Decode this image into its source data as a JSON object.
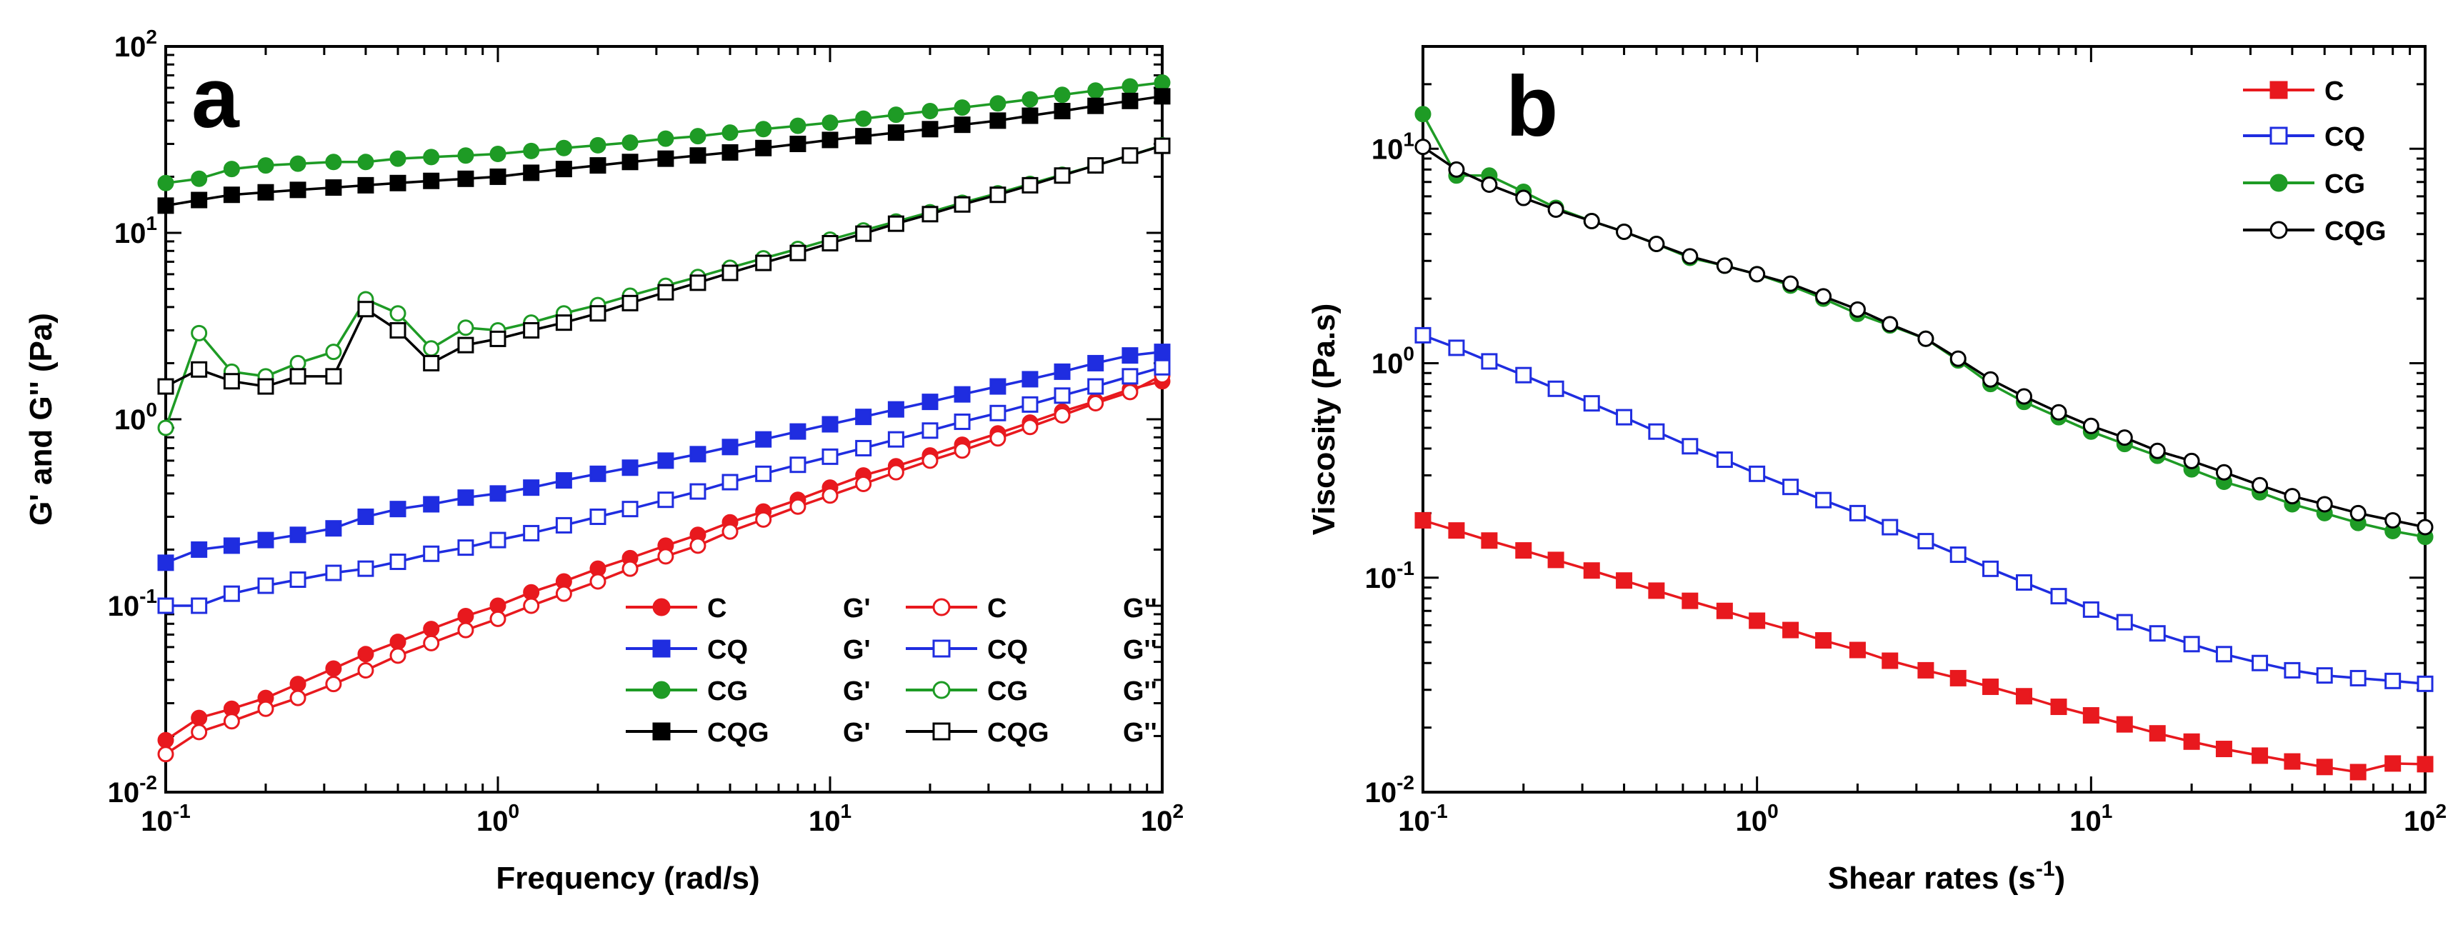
{
  "chart_data": [
    {
      "panel": "a",
      "type": "line",
      "xscale": "log",
      "yscale": "log",
      "xlim": [
        0.1,
        100
      ],
      "ylim": [
        0.01,
        100
      ],
      "xlabel": "Frequency (rad/s)",
      "ylabel": "G' and G'' (Pa)",
      "xticks": [
        {
          "v": 0.1,
          "base": "10",
          "exp": "-1"
        },
        {
          "v": 1,
          "base": "10",
          "exp": "0"
        },
        {
          "v": 10,
          "base": "10",
          "exp": "1"
        },
        {
          "v": 100,
          "base": "10",
          "exp": "2"
        }
      ],
      "yticks": [
        {
          "v": 0.01,
          "base": "10",
          "exp": "-2"
        },
        {
          "v": 0.1,
          "base": "10",
          "exp": "-1"
        },
        {
          "v": 1,
          "base": "10",
          "exp": "0"
        },
        {
          "v": 10,
          "base": "10",
          "exp": "1"
        },
        {
          "v": 100,
          "base": "10",
          "exp": "2"
        }
      ],
      "legend_position": "bottom-right",
      "series": [
        {
          "name": "C",
          "label": "G'",
          "color": "#e8191e",
          "marker": "circle",
          "filled": true,
          "x": [
            0.1,
            0.126,
            0.158,
            0.2,
            0.25,
            0.32,
            0.4,
            0.5,
            0.63,
            0.8,
            1,
            1.26,
            1.58,
            2,
            2.5,
            3.2,
            4,
            5,
            6.3,
            8,
            10,
            12.6,
            15.8,
            20,
            25,
            32,
            40,
            50,
            63,
            80,
            100
          ],
          "y": [
            0.019,
            0.025,
            0.028,
            0.032,
            0.038,
            0.046,
            0.055,
            0.064,
            0.075,
            0.088,
            0.1,
            0.118,
            0.135,
            0.158,
            0.18,
            0.21,
            0.24,
            0.28,
            0.32,
            0.37,
            0.43,
            0.5,
            0.56,
            0.64,
            0.73,
            0.84,
            0.96,
            1.1,
            1.25,
            1.45,
            1.6
          ]
        },
        {
          "name": "C",
          "label": "G''",
          "color": "#e8191e",
          "marker": "circle",
          "filled": false,
          "x": [
            0.1,
            0.126,
            0.158,
            0.2,
            0.25,
            0.32,
            0.4,
            0.5,
            0.63,
            0.8,
            1,
            1.26,
            1.58,
            2,
            2.5,
            3.2,
            4,
            5,
            6.3,
            8,
            10,
            12.6,
            15.8,
            20,
            25,
            32,
            40,
            50,
            63,
            80,
            100
          ],
          "y": [
            0.016,
            0.021,
            0.024,
            0.028,
            0.032,
            0.038,
            0.045,
            0.054,
            0.063,
            0.074,
            0.085,
            0.1,
            0.116,
            0.135,
            0.158,
            0.184,
            0.21,
            0.25,
            0.29,
            0.34,
            0.39,
            0.45,
            0.52,
            0.6,
            0.68,
            0.79,
            0.91,
            1.05,
            1.22,
            1.4,
            1.72
          ]
        },
        {
          "name": "CQ",
          "label": "G'",
          "color": "#1f2de0",
          "marker": "square",
          "filled": true,
          "x": [
            0.1,
            0.126,
            0.158,
            0.2,
            0.25,
            0.32,
            0.4,
            0.5,
            0.63,
            0.8,
            1,
            1.26,
            1.58,
            2,
            2.5,
            3.2,
            4,
            5,
            6.3,
            8,
            10,
            12.6,
            15.8,
            20,
            25,
            32,
            40,
            50,
            63,
            80,
            100
          ],
          "y": [
            0.17,
            0.2,
            0.21,
            0.225,
            0.24,
            0.26,
            0.3,
            0.33,
            0.35,
            0.38,
            0.4,
            0.43,
            0.47,
            0.51,
            0.55,
            0.6,
            0.65,
            0.71,
            0.78,
            0.86,
            0.94,
            1.03,
            1.13,
            1.24,
            1.36,
            1.5,
            1.64,
            1.8,
            2.0,
            2.2,
            2.3
          ]
        },
        {
          "name": "CQ",
          "label": "G''",
          "color": "#1f2de0",
          "marker": "square",
          "filled": false,
          "x": [
            0.1,
            0.126,
            0.158,
            0.2,
            0.25,
            0.32,
            0.4,
            0.5,
            0.63,
            0.8,
            1,
            1.26,
            1.58,
            2,
            2.5,
            3.2,
            4,
            5,
            6.3,
            8,
            10,
            12.6,
            15.8,
            20,
            25,
            32,
            40,
            50,
            63,
            80,
            100
          ],
          "y": [
            0.1,
            0.1,
            0.116,
            0.128,
            0.138,
            0.15,
            0.158,
            0.172,
            0.19,
            0.205,
            0.225,
            0.245,
            0.27,
            0.3,
            0.33,
            0.37,
            0.41,
            0.46,
            0.51,
            0.57,
            0.63,
            0.7,
            0.78,
            0.87,
            0.97,
            1.08,
            1.2,
            1.34,
            1.5,
            1.7,
            1.9
          ]
        },
        {
          "name": "CG",
          "label": "G'",
          "color": "#1e9b25",
          "marker": "circle",
          "filled": true,
          "x": [
            0.1,
            0.126,
            0.158,
            0.2,
            0.25,
            0.32,
            0.4,
            0.5,
            0.63,
            0.8,
            1,
            1.26,
            1.58,
            2,
            2.5,
            3.2,
            4,
            5,
            6.3,
            8,
            10,
            12.6,
            15.8,
            20,
            25,
            32,
            40,
            50,
            63,
            80,
            100
          ],
          "y": [
            18.5,
            19.5,
            22,
            23,
            23.5,
            24,
            24,
            25,
            25.5,
            26,
            26.5,
            27.5,
            28.5,
            29.5,
            30.5,
            32,
            33,
            34.5,
            36,
            37.5,
            39,
            41,
            43,
            45,
            47,
            49.5,
            52,
            55,
            58,
            61,
            64
          ]
        },
        {
          "name": "CG",
          "label": "G''",
          "color": "#1e9b25",
          "marker": "circle",
          "filled": false,
          "x": [
            0.1,
            0.126,
            0.158,
            0.2,
            0.25,
            0.32,
            0.4,
            0.5,
            0.63,
            0.8,
            1,
            1.26,
            1.58,
            2,
            2.5,
            3.2,
            4,
            5,
            6.3,
            8,
            10,
            12.6,
            15.8,
            20,
            25,
            32,
            40,
            50,
            63,
            80,
            100
          ],
          "y": [
            0.9,
            2.9,
            1.8,
            1.7,
            2.0,
            2.3,
            4.4,
            3.7,
            2.4,
            3.1,
            3.0,
            3.3,
            3.7,
            4.1,
            4.6,
            5.2,
            5.8,
            6.5,
            7.3,
            8.2,
            9.2,
            10.3,
            11.5,
            12.9,
            14.5,
            16.3,
            18.3,
            20.5,
            23,
            26,
            29.5
          ]
        },
        {
          "name": "CQG",
          "label": "G'",
          "color": "#000000",
          "marker": "square",
          "filled": true,
          "x": [
            0.1,
            0.126,
            0.158,
            0.2,
            0.25,
            0.32,
            0.4,
            0.5,
            0.63,
            0.8,
            1,
            1.26,
            1.58,
            2,
            2.5,
            3.2,
            4,
            5,
            6.3,
            8,
            10,
            12.6,
            15.8,
            20,
            25,
            32,
            40,
            50,
            63,
            80,
            100
          ],
          "y": [
            14,
            15,
            16,
            16.5,
            17,
            17.5,
            18,
            18.5,
            19,
            19.5,
            20,
            21,
            22,
            23,
            24,
            25,
            26,
            27,
            28.5,
            30,
            31.5,
            33,
            34.5,
            36,
            38,
            40,
            42.5,
            45,
            48,
            51,
            54
          ]
        },
        {
          "name": "CQG",
          "label": "G''",
          "color": "#000000",
          "marker": "square",
          "filled": false,
          "x": [
            0.1,
            0.126,
            0.158,
            0.2,
            0.25,
            0.32,
            0.4,
            0.5,
            0.63,
            0.8,
            1,
            1.26,
            1.58,
            2,
            2.5,
            3.2,
            4,
            5,
            6.3,
            8,
            10,
            12.6,
            15.8,
            20,
            25,
            32,
            40,
            50,
            63,
            80,
            100
          ],
          "y": [
            1.5,
            1.85,
            1.6,
            1.5,
            1.7,
            1.7,
            3.9,
            3.0,
            2.0,
            2.5,
            2.7,
            3.0,
            3.3,
            3.7,
            4.2,
            4.8,
            5.4,
            6.1,
            6.9,
            7.8,
            8.8,
            9.9,
            11.2,
            12.6,
            14.2,
            16,
            18,
            20.3,
            23,
            26,
            29.3
          ]
        }
      ]
    },
    {
      "panel": "b",
      "type": "line",
      "xscale": "log",
      "yscale": "log",
      "xlim": [
        0.1,
        100
      ],
      "ylim": [
        0.01,
        30
      ],
      "xlabel": "Shear rates (s",
      "xlabel_sup": "-1",
      "xlabel_end": ")",
      "ylabel": "Viscosity (Pa.s)",
      "xticks": [
        {
          "v": 0.1,
          "base": "10",
          "exp": "-1"
        },
        {
          "v": 1,
          "base": "10",
          "exp": "0"
        },
        {
          "v": 10,
          "base": "10",
          "exp": "1"
        },
        {
          "v": 100,
          "base": "10",
          "exp": "2"
        }
      ],
      "yticks": [
        {
          "v": 0.01,
          "base": "10",
          "exp": "-2"
        },
        {
          "v": 0.1,
          "base": "10",
          "exp": "-1"
        },
        {
          "v": 1,
          "base": "10",
          "exp": "0"
        },
        {
          "v": 10,
          "base": "10",
          "exp": "1"
        }
      ],
      "legend_position": "top-right",
      "series": [
        {
          "name": "C",
          "color": "#e8191e",
          "marker": "square",
          "filled": true,
          "x": [
            0.1,
            0.126,
            0.158,
            0.2,
            0.25,
            0.32,
            0.4,
            0.5,
            0.63,
            0.8,
            1,
            1.26,
            1.58,
            2,
            2.5,
            3.2,
            4,
            5,
            6.3,
            8,
            10,
            12.6,
            15.8,
            20,
            25,
            32,
            40,
            50,
            63,
            80,
            100
          ],
          "y": [
            0.185,
            0.166,
            0.149,
            0.134,
            0.121,
            0.108,
            0.097,
            0.087,
            0.078,
            0.07,
            0.063,
            0.057,
            0.051,
            0.046,
            0.041,
            0.037,
            0.034,
            0.031,
            0.028,
            0.025,
            0.0228,
            0.0207,
            0.0188,
            0.0172,
            0.0159,
            0.0148,
            0.0139,
            0.0131,
            0.0124,
            0.0136,
            0.0135
          ]
        },
        {
          "name": "CQ",
          "color": "#1f2de0",
          "marker": "square",
          "filled": false,
          "x": [
            0.1,
            0.126,
            0.158,
            0.2,
            0.25,
            0.32,
            0.4,
            0.5,
            0.63,
            0.8,
            1,
            1.26,
            1.58,
            2,
            2.5,
            3.2,
            4,
            5,
            6.3,
            8,
            10,
            12.6,
            15.8,
            20,
            25,
            32,
            40,
            50,
            63,
            80,
            100
          ],
          "y": [
            1.35,
            1.18,
            1.02,
            0.88,
            0.76,
            0.65,
            0.56,
            0.48,
            0.41,
            0.355,
            0.305,
            0.265,
            0.23,
            0.2,
            0.172,
            0.148,
            0.128,
            0.11,
            0.095,
            0.082,
            0.071,
            0.062,
            0.055,
            0.049,
            0.044,
            0.04,
            0.037,
            0.035,
            0.034,
            0.033,
            0.032
          ]
        },
        {
          "name": "CG",
          "color": "#1e9b25",
          "marker": "circle",
          "filled": true,
          "x": [
            0.1,
            0.126,
            0.158,
            0.2,
            0.25,
            0.32,
            0.4,
            0.5,
            0.63,
            0.8,
            1,
            1.26,
            1.58,
            2,
            2.5,
            3.2,
            4,
            5,
            6.3,
            8,
            10,
            12.6,
            15.8,
            20,
            25,
            32,
            40,
            50,
            63,
            80,
            100
          ],
          "y": [
            14.5,
            7.5,
            7.5,
            6.3,
            5.3,
            4.6,
            4.1,
            3.6,
            3.1,
            2.85,
            2.6,
            2.3,
            2.0,
            1.7,
            1.5,
            1.3,
            1.03,
            0.8,
            0.66,
            0.56,
            0.48,
            0.42,
            0.37,
            0.32,
            0.28,
            0.25,
            0.22,
            0.2,
            0.18,
            0.165,
            0.155
          ]
        },
        {
          "name": "CQG",
          "color": "#000000",
          "marker": "circle",
          "filled": false,
          "x": [
            0.1,
            0.126,
            0.158,
            0.2,
            0.25,
            0.32,
            0.4,
            0.5,
            0.63,
            0.8,
            1,
            1.26,
            1.58,
            2,
            2.5,
            3.2,
            4,
            5,
            6.3,
            8,
            10,
            12.6,
            15.8,
            20,
            25,
            32,
            40,
            50,
            63,
            80,
            100
          ],
          "y": [
            10.2,
            8.0,
            6.8,
            5.9,
            5.2,
            4.6,
            4.1,
            3.6,
            3.15,
            2.85,
            2.6,
            2.35,
            2.05,
            1.78,
            1.52,
            1.3,
            1.05,
            0.84,
            0.7,
            0.59,
            0.51,
            0.45,
            0.39,
            0.35,
            0.31,
            0.27,
            0.24,
            0.22,
            0.2,
            0.185,
            0.172
          ]
        }
      ]
    }
  ]
}
